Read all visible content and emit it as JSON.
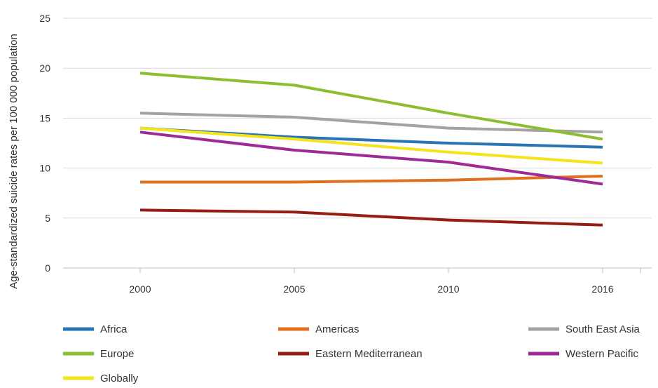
{
  "chart_data": {
    "type": "line",
    "title": "",
    "xlabel": "",
    "ylabel": "Age-standardized suicide rates per 100 000 population",
    "x": [
      "2000",
      "2005",
      "2010",
      "2016"
    ],
    "ylim": [
      0,
      25
    ],
    "yticks": [
      "0",
      "5",
      "10",
      "15",
      "20",
      "25"
    ],
    "grid": "horizontal",
    "legend_position": "bottom",
    "series": [
      {
        "name": "Africa",
        "color": "#2a74b5",
        "values": [
          14.0,
          13.1,
          12.5,
          12.1
        ]
      },
      {
        "name": "Americas",
        "color": "#e0701f",
        "values": [
          8.6,
          8.6,
          8.8,
          9.2
        ]
      },
      {
        "name": "South East Asia",
        "color": "#a3a3a3",
        "values": [
          15.5,
          15.1,
          14.0,
          13.6
        ]
      },
      {
        "name": "Europe",
        "color": "#8cbe2f",
        "values": [
          19.5,
          18.3,
          15.5,
          12.9
        ]
      },
      {
        "name": "Eastern Mediterranean",
        "color": "#961d14",
        "values": [
          5.8,
          5.6,
          4.8,
          4.3
        ]
      },
      {
        "name": "Western Pacific",
        "color": "#9d2a96",
        "values": [
          13.6,
          11.8,
          10.6,
          8.4
        ]
      },
      {
        "name": "Globally",
        "color": "#f5e31b",
        "values": [
          14.0,
          12.9,
          11.6,
          10.5
        ]
      }
    ]
  }
}
